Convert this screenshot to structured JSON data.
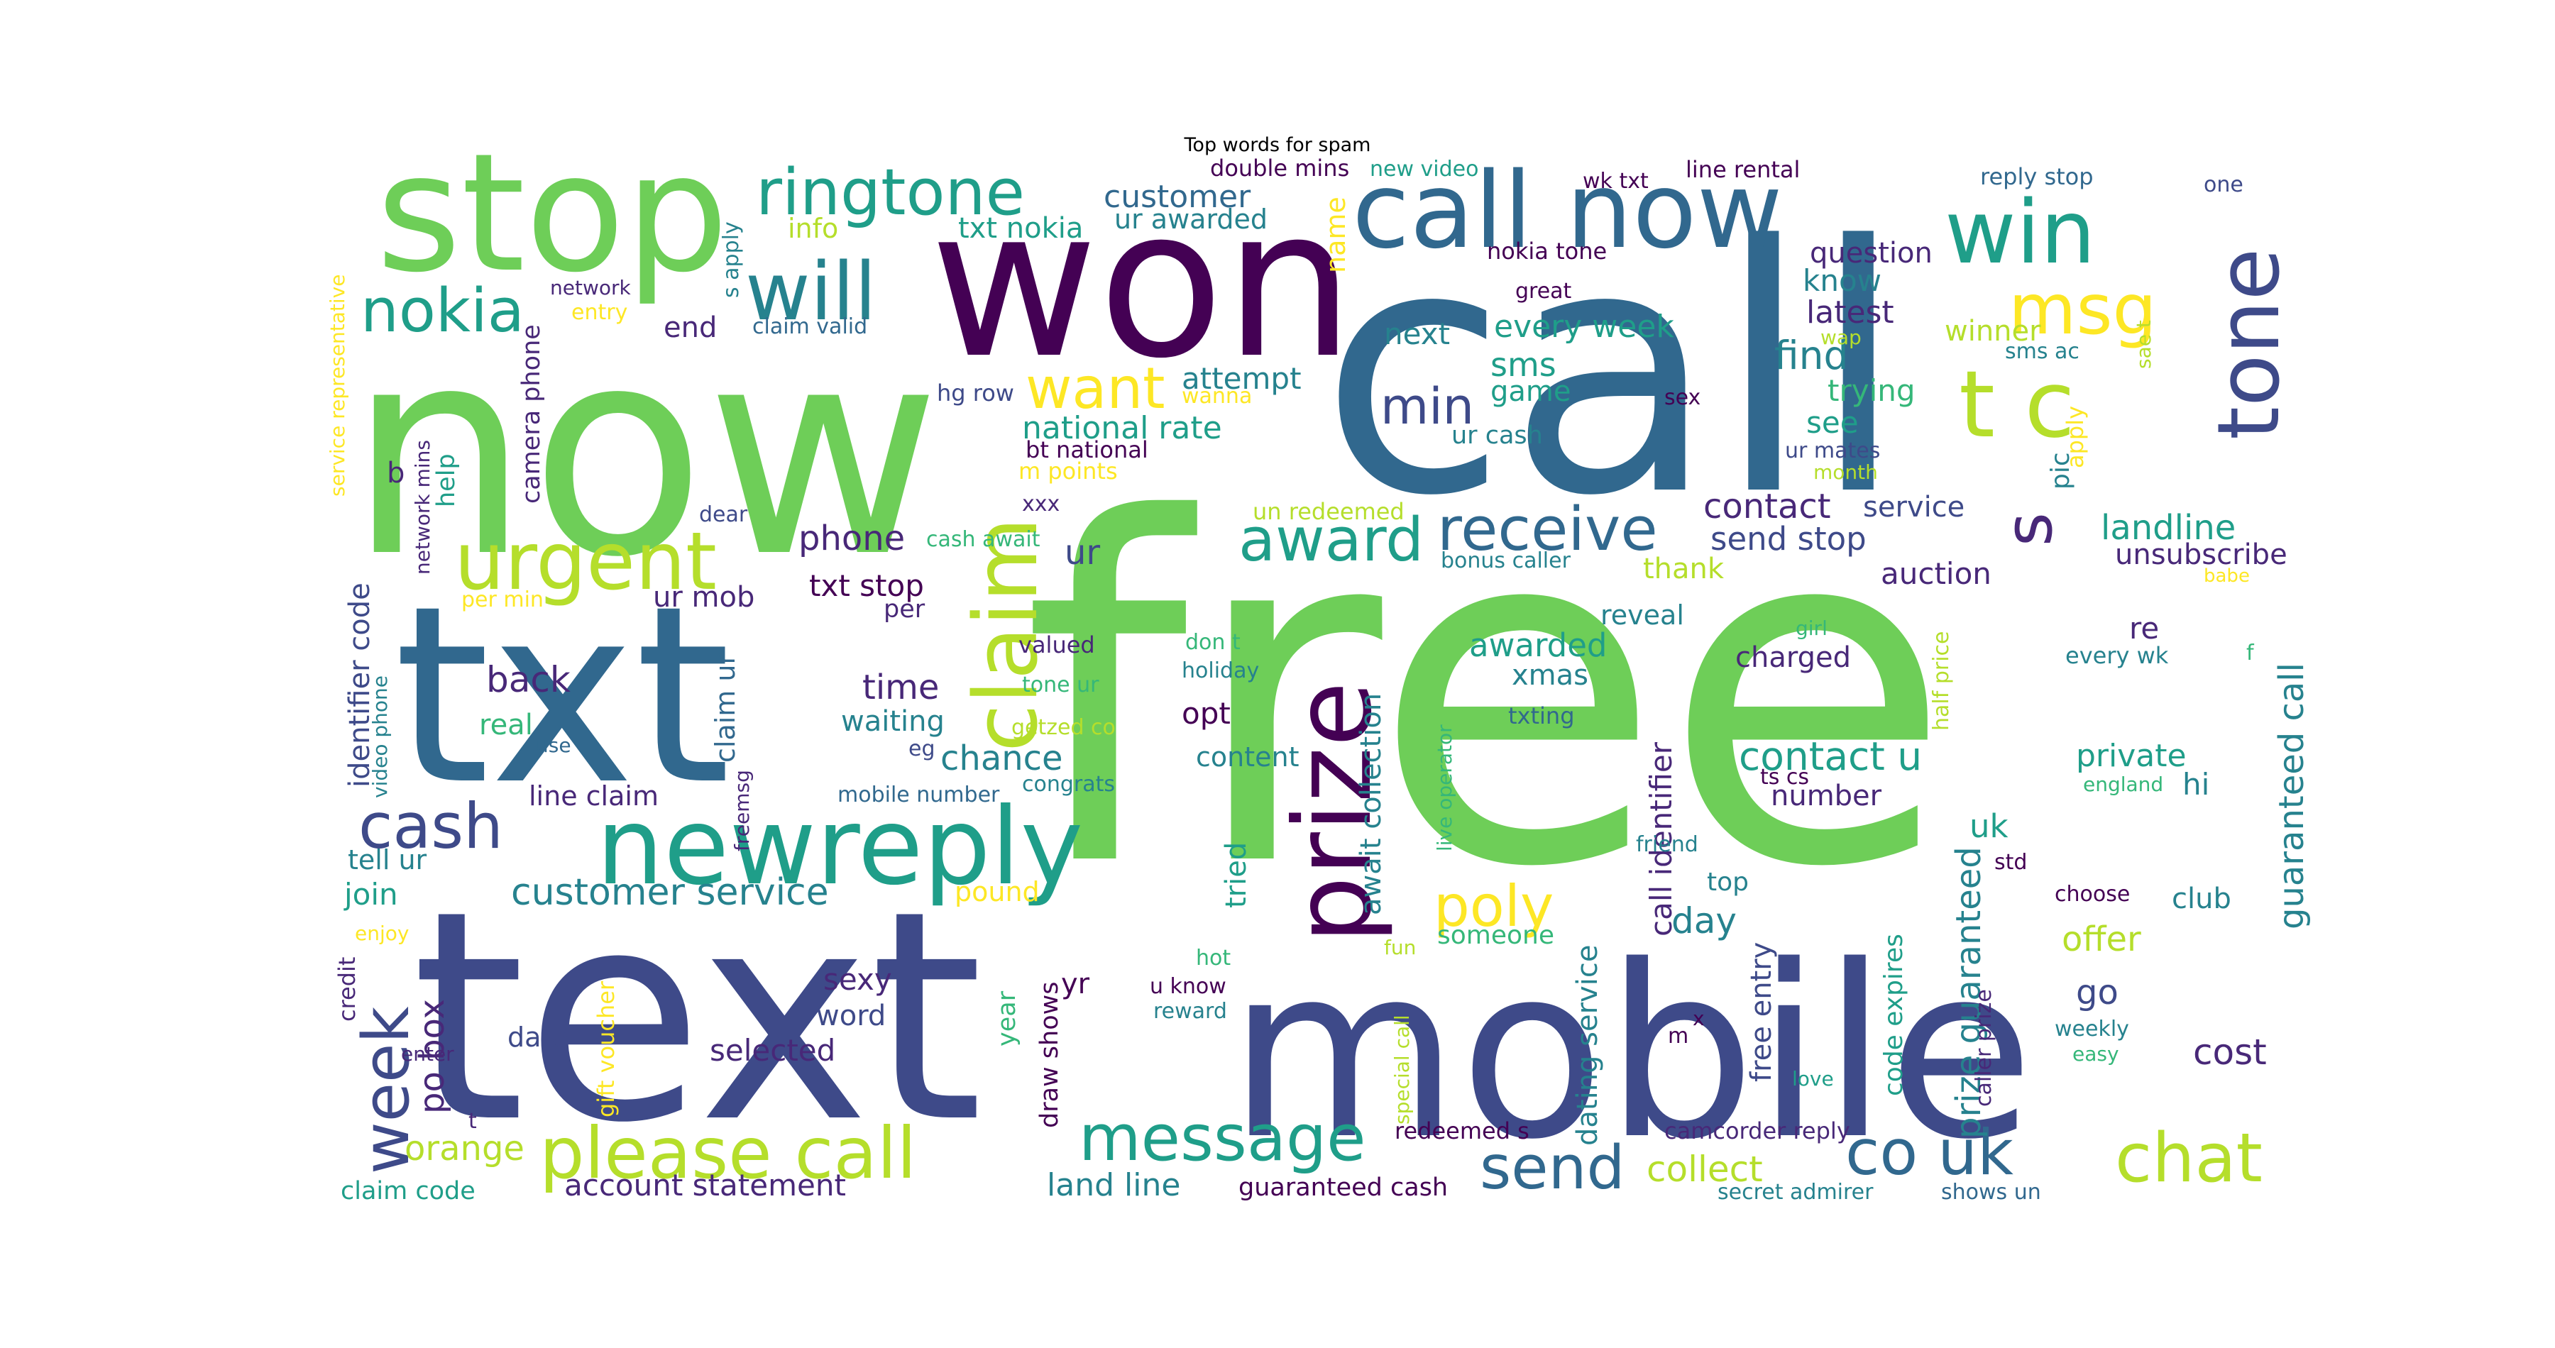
{
  "chart_data": {
    "type": "wordcloud",
    "title": "Top words for spam",
    "palette": [
      "#440154",
      "#482878",
      "#3e4a89",
      "#31688e",
      "#26828e",
      "#1f9e89",
      "#35b779",
      "#6ece58",
      "#b5de2b",
      "#fde725"
    ],
    "words": [
      "free",
      "call",
      "now",
      "text",
      "mobile",
      "won",
      "txt",
      "stop",
      "call now",
      "claim",
      "prize",
      "newreply",
      "please call",
      "ringtone",
      "win",
      "tone",
      "t c",
      "will",
      "msg",
      "nokia",
      "urgent",
      "receive",
      "award",
      "want",
      "min",
      "cash",
      "week",
      "message",
      "send",
      "co uk",
      "chat",
      "s",
      "customer",
      "customer service",
      "poly",
      "contact u",
      "guaranteed call",
      "prize guaranteed",
      "every week",
      "national rate",
      "latest",
      "find",
      "landline",
      "auction",
      "unsubscribe",
      "awarded",
      "xmas",
      "back",
      "time",
      "chance",
      "opt",
      "content",
      "phone",
      "contact",
      "service",
      "send stop",
      "txt stop",
      "ur mob",
      "waiting",
      "real",
      "identifier code",
      "line claim",
      "tell ur",
      "join",
      "po box",
      "orange",
      "date",
      "account statement",
      "land line",
      "guaranteed cash",
      "collect",
      "free entry",
      "draw shows",
      "selected",
      "sexy",
      "word",
      "gift voucher",
      "pound",
      "dating service",
      "code expires",
      "day",
      "top",
      "someone",
      "offer",
      "club",
      "go",
      "cost",
      "uk",
      "hi",
      "private",
      "number",
      "charged",
      "reveal",
      "re",
      "every wk",
      "thank",
      "see",
      "trying",
      "know",
      "question",
      "winner",
      "game",
      "sms",
      "next",
      "attempt",
      "ur awarded",
      "txt nokia",
      "info",
      "end",
      "ur cash",
      "await collection",
      "call identifier",
      "tried",
      "year",
      "yr",
      "u know",
      "reward",
      "hot",
      "fun",
      "special call",
      "redeemed s",
      "camcorder reply",
      "secret admirer",
      "shows un",
      "caller prize",
      "weekly",
      "easy",
      "love",
      "choose",
      "std",
      "friend",
      "ts cs",
      "x",
      "m",
      "claim code",
      "enter",
      "t",
      "credit",
      "enjoy",
      "help",
      "b",
      "camera phone",
      "network mins",
      "video phone",
      "use",
      "freemsg",
      "claim ur",
      "per min",
      "dear",
      "xxx",
      "m points",
      "bt national",
      "wanna",
      "hg row",
      "claim valid",
      "network",
      "entry",
      "s apply",
      "service representative",
      "double mins",
      "new video",
      "wk txt",
      "line rental",
      "reply stop",
      "one",
      "nokia tone",
      "great",
      "wap",
      "sae t",
      "sms ac",
      "sex",
      "ur mates",
      "month",
      "apply",
      "pic",
      "un redeemed",
      "bonus caller",
      "cash await",
      "per",
      "valued",
      "don t",
      "holiday",
      "tone ur",
      "getzed co",
      "eg",
      "mobile number",
      "congrats",
      "live operator",
      "txting",
      "half price",
      "girl",
      "babe",
      "f",
      "england",
      "ur",
      "name"
    ]
  }
}
